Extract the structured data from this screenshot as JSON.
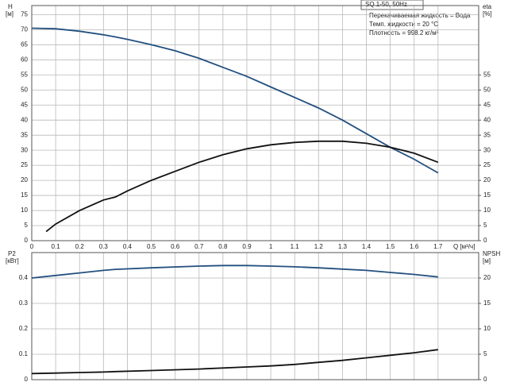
{
  "chart_data": [
    {
      "type": "line",
      "title": "SQ 1-50, 50Hz",
      "notes": [
        "Перекачиваемая жидкость = Вода",
        "Темп. жидкости = 20 °C",
        "Плотность = 998.2 кг/м³"
      ],
      "y_label": "H",
      "y_unit": "[м]",
      "y2_label": "eta",
      "y2_unit": "[%]",
      "x_label": "Q [м³/ч]",
      "xlim": [
        0,
        1.87
      ],
      "xticks": [
        0,
        0.1,
        0.2,
        0.3,
        0.4,
        0.5,
        0.6,
        0.7,
        0.8,
        0.9,
        1.0,
        1.1,
        1.2,
        1.3,
        1.4,
        1.5,
        1.6,
        1.7
      ],
      "ylim": [
        0,
        78
      ],
      "yticks": [
        0,
        5,
        10,
        15,
        20,
        25,
        30,
        35,
        40,
        45,
        50,
        55,
        60,
        65,
        70,
        75
      ],
      "y2lim": [
        0,
        78
      ],
      "y2ticks": [
        0,
        5,
        10,
        15,
        20,
        25,
        30,
        35,
        40,
        45,
        50,
        55
      ],
      "grid": true,
      "series": [
        {
          "color": "#23507f",
          "axis": "y",
          "x": [
            0,
            0.1,
            0.2,
            0.3,
            0.35,
            0.4,
            0.5,
            0.6,
            0.7,
            0.8,
            0.9,
            1.0,
            1.1,
            1.2,
            1.3,
            1.4,
            1.5,
            1.6,
            1.7
          ],
          "values": [
            70.5,
            70.3,
            69.5,
            68.3,
            67.6,
            66.8,
            65,
            63,
            60.5,
            57.5,
            54.5,
            51,
            47.5,
            44,
            40,
            35.5,
            31,
            27,
            22.5
          ]
        },
        {
          "color": "#111111",
          "axis": "y2",
          "x": [
            0.06,
            0.1,
            0.2,
            0.3,
            0.35,
            0.4,
            0.5,
            0.6,
            0.7,
            0.8,
            0.9,
            1.0,
            1.1,
            1.2,
            1.3,
            1.4,
            1.5,
            1.6,
            1.7
          ],
          "values": [
            3,
            5.5,
            10,
            13.5,
            14.5,
            16.5,
            20,
            23,
            26,
            28.5,
            30.5,
            31.8,
            32.6,
            33,
            33,
            32.3,
            31,
            29,
            26
          ]
        }
      ]
    },
    {
      "type": "line",
      "y_label": "P2",
      "y_unit": "[кВт]",
      "y2_label": "NPSH",
      "y2_unit": "[м]",
      "xlim": [
        0,
        1.87
      ],
      "ylim": [
        0,
        0.5
      ],
      "yticks": [
        0,
        0.1,
        0.2,
        0.3,
        0.4
      ],
      "y2lim": [
        0,
        25
      ],
      "y2ticks": [
        0,
        5,
        10,
        15,
        20
      ],
      "grid": true,
      "series": [
        {
          "color": "#23507f",
          "axis": "y",
          "x": [
            0,
            0.1,
            0.2,
            0.3,
            0.35,
            0.5,
            0.7,
            0.8,
            0.9,
            1.0,
            1.1,
            1.2,
            1.3,
            1.4,
            1.5,
            1.6,
            1.7
          ],
          "values": [
            0.4,
            0.41,
            0.42,
            0.43,
            0.434,
            0.44,
            0.447,
            0.449,
            0.449,
            0.447,
            0.444,
            0.44,
            0.435,
            0.43,
            0.422,
            0.414,
            0.404
          ]
        },
        {
          "color": "#111111",
          "axis": "y2",
          "x": [
            0,
            0.1,
            0.2,
            0.3,
            0.35,
            0.5,
            0.7,
            0.9,
            1.0,
            1.1,
            1.2,
            1.3,
            1.4,
            1.5,
            1.6,
            1.7
          ],
          "values": [
            1.2,
            1.3,
            1.4,
            1.5,
            1.6,
            1.8,
            2.1,
            2.5,
            2.7,
            3.0,
            3.4,
            3.8,
            4.3,
            4.8,
            5.3,
            5.9
          ]
        }
      ]
    }
  ]
}
